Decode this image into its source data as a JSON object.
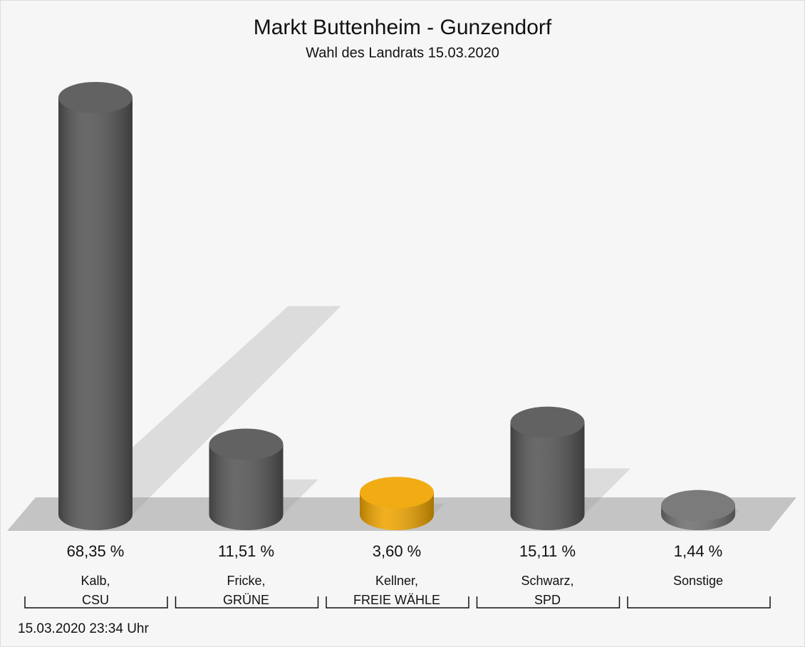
{
  "chart_data": {
    "type": "bar",
    "title": "Markt Buttenheim - Gunzendorf",
    "subtitle": "Wahl des Landrats 15.03.2020",
    "categories": [
      [
        "Kalb,",
        "CSU"
      ],
      [
        "Fricke,",
        "GRÜNE"
      ],
      [
        "Kellner,",
        "FREIE WÄHLE"
      ],
      [
        "Schwarz,",
        "SPD"
      ],
      [
        "Sonstige"
      ]
    ],
    "values": [
      68.35,
      11.51,
      3.6,
      15.11,
      1.44
    ],
    "value_labels": [
      "68,35 %",
      "11,51 %",
      "3,60 %",
      "15,11 %",
      "1,44 %"
    ],
    "colors": [
      "#555555",
      "#555555",
      "#f0a500",
      "#555555",
      "#707070"
    ],
    "footnote": "15.03.2020 23:34 Uhr"
  }
}
